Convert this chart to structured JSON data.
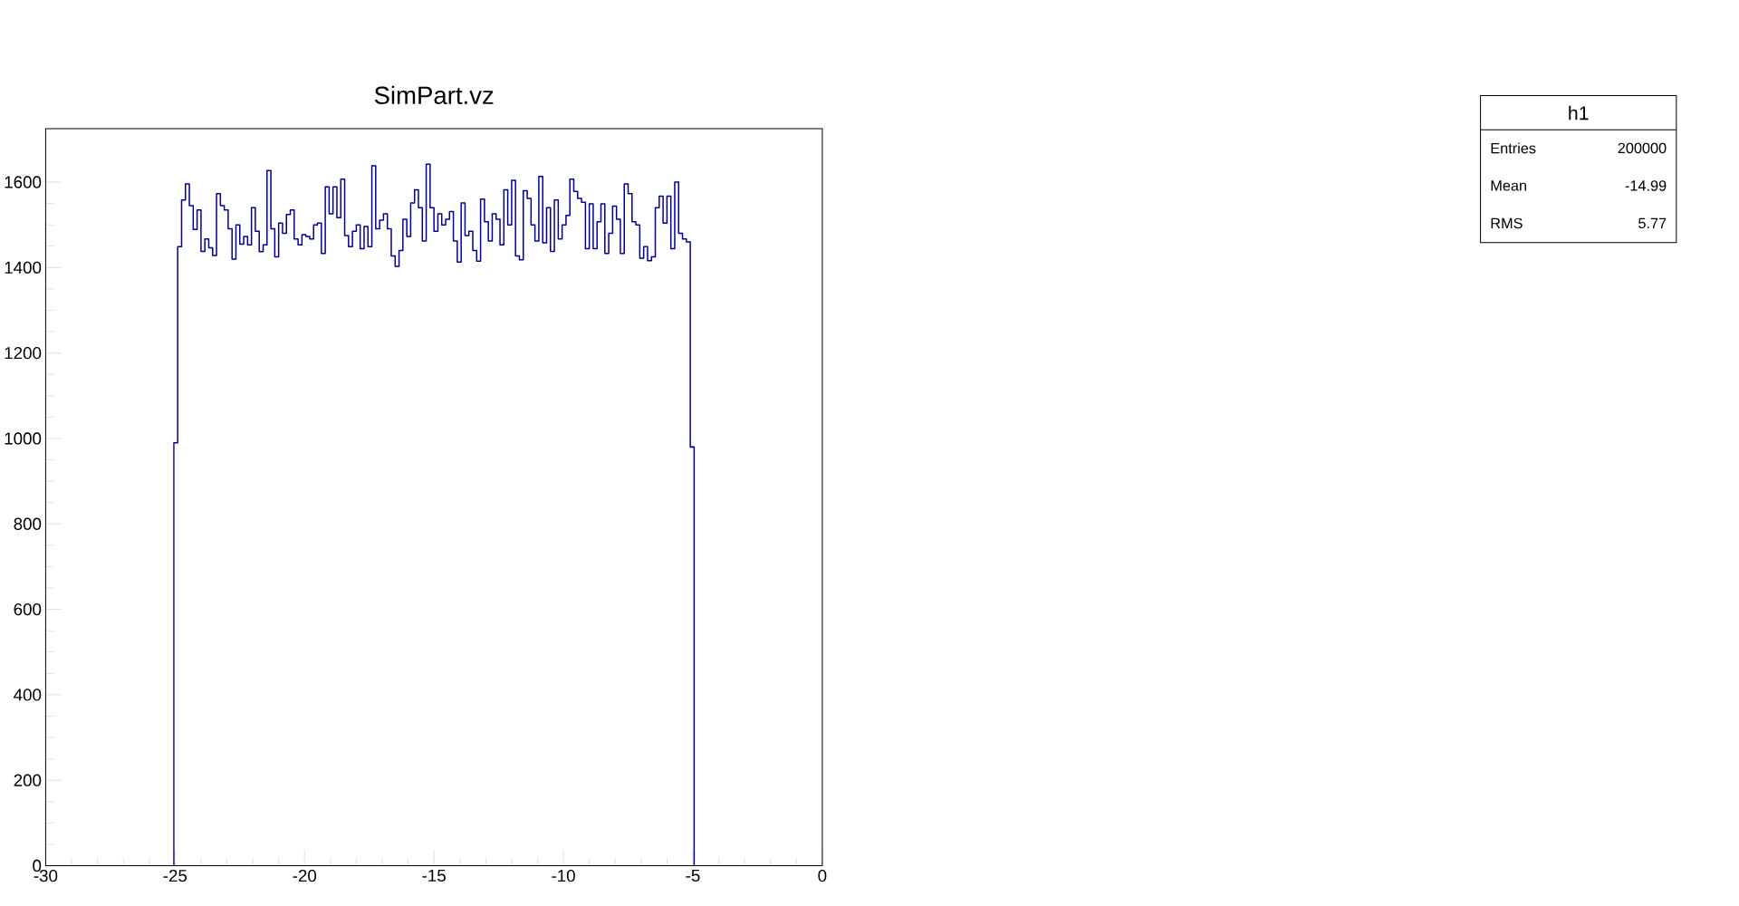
{
  "chart_data": {
    "type": "histogram",
    "title": "SimPart.vz",
    "color": "#000099",
    "annotations": [
      "h1",
      "Entries",
      "200000",
      "Mean",
      "-14.99",
      "RMS",
      "5.77"
    ],
    "xlim": [
      -30,
      0
    ],
    "xticks": [
      -30,
      -25,
      -20,
      -15,
      -10,
      -5,
      0
    ],
    "ylim": [
      0,
      1725
    ],
    "yticks": [
      0,
      200,
      400,
      600,
      800,
      1000,
      1200,
      1400,
      1600
    ],
    "grid": false,
    "bins": [
      -25.05,
      -24.9,
      -24.75,
      -24.6,
      -24.45,
      -24.3,
      -24.15,
      -24,
      -23.85,
      -23.7,
      -23.55,
      -23.4,
      -23.25,
      -23.1,
      -22.95,
      -22.8,
      -22.65,
      -22.5,
      -22.35,
      -22.2,
      -22.05,
      -21.9,
      -21.75,
      -21.6,
      -21.45,
      -21.3,
      -21.15,
      -21,
      -20.85,
      -20.7,
      -20.55,
      -20.4,
      -20.25,
      -20.1,
      -19.95,
      -19.8,
      -19.65,
      -19.5,
      -19.35,
      -19.2,
      -19.05,
      -18.9,
      -18.75,
      -18.6,
      -18.45,
      -18.3,
      -18.15,
      -18,
      -17.85,
      -17.7,
      -17.55,
      -17.4,
      -17.25,
      -17.1,
      -16.95,
      -16.8,
      -16.65,
      -16.5,
      -16.35,
      -16.2,
      -16.05,
      -15.9,
      -15.75,
      -15.6,
      -15.45,
      -15.3,
      -15.15,
      -15,
      -14.85,
      -14.7,
      -14.55,
      -14.4,
      -14.25,
      -14.1,
      -13.95,
      -13.8,
      -13.65,
      -13.5,
      -13.35,
      -13.2,
      -13.05,
      -12.9,
      -12.75,
      -12.6,
      -12.45,
      -12.3,
      -12.15,
      -12,
      -11.85,
      -11.7,
      -11.55,
      -11.4,
      -11.25,
      -11.1,
      -10.95,
      -10.8,
      -10.65,
      -10.5,
      -10.35,
      -10.2,
      -10.05,
      -9.9,
      -9.75,
      -9.6,
      -9.45,
      -9.3,
      -9.15,
      -9,
      -8.85,
      -8.7,
      -8.55,
      -8.4,
      -8.25,
      -8.1,
      -7.95,
      -7.8,
      -7.65,
      -7.5,
      -7.35,
      -7.2,
      -7.05,
      -6.9,
      -6.75,
      -6.6,
      -6.45,
      -6.3,
      -6.15,
      -6,
      -5.85,
      -5.7,
      -5.55,
      -5.4,
      -5.25,
      -5.1,
      -4.95
    ],
    "values": [
      990,
      1449,
      1558,
      1596,
      1545,
      1489,
      1535,
      1438,
      1467,
      1446,
      1428,
      1573,
      1545,
      1535,
      1491,
      1420,
      1500,
      1455,
      1473,
      1453,
      1540,
      1485,
      1437,
      1453,
      1627,
      1491,
      1425,
      1504,
      1480,
      1524,
      1535,
      1467,
      1453,
      1477,
      1473,
      1467,
      1500,
      1504,
      1433,
      1589,
      1526,
      1589,
      1517,
      1607,
      1475,
      1449,
      1485,
      1500,
      1444,
      1496,
      1449,
      1638,
      1491,
      1511,
      1526,
      1491,
      1427,
      1403,
      1440,
      1513,
      1473,
      1551,
      1582,
      1540,
      1462,
      1642,
      1540,
      1485,
      1526,
      1500,
      1513,
      1531,
      1462,
      1413,
      1551,
      1475,
      1485,
      1440,
      1415,
      1560,
      1507,
      1462,
      1526,
      1513,
      1453,
      1582,
      1500,
      1604,
      1427,
      1418,
      1580,
      1562,
      1500,
      1462,
      1613,
      1458,
      1540,
      1438,
      1558,
      1467,
      1500,
      1522,
      1607,
      1578,
      1562,
      1553,
      1444,
      1549,
      1444,
      1507,
      1549,
      1433,
      1480,
      1544,
      1513,
      1433,
      1596,
      1573,
      1507,
      1500,
      1422,
      1449,
      1416,
      1425,
      1540,
      1567,
      1504,
      1567,
      1444,
      1600,
      1480,
      1467,
      1460,
      980
    ]
  }
}
